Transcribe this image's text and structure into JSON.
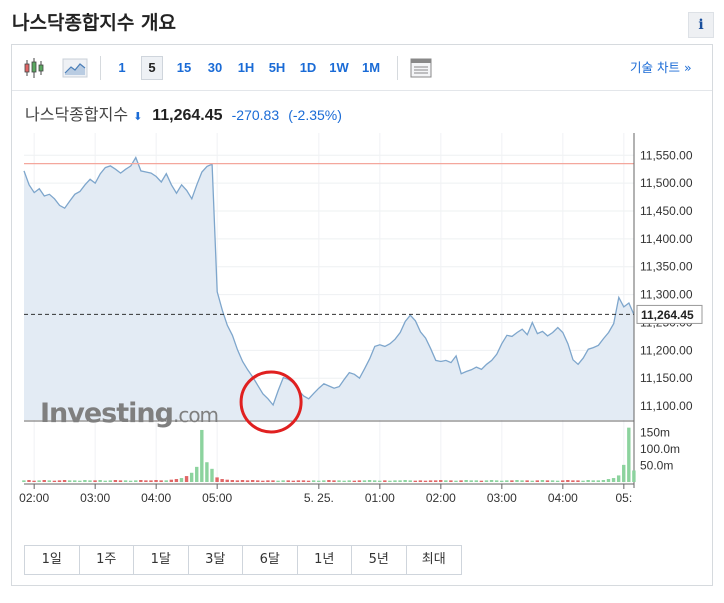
{
  "page": {
    "title": "나스닥종합지수 개요",
    "info_label": "i"
  },
  "toolbar": {
    "icons": [
      "candlestick-icon",
      "area-chart-icon",
      "table-icon"
    ],
    "intervals": [
      "1",
      "5",
      "15",
      "30",
      "1H",
      "5H",
      "1D",
      "1W",
      "1M"
    ],
    "active_interval": "5",
    "tech_chart_link": "기술 차트 »"
  },
  "quote": {
    "name": "나스닥종합지수",
    "direction_icon": "down-arrow-icon",
    "price": "11,264.45",
    "change": "-270.83",
    "change_pct": "(-2.35%)",
    "down_color": "#1a6bd6"
  },
  "watermark": {
    "brand": "Investing",
    "suffix": ".com"
  },
  "ranges": [
    "1일",
    "1주",
    "1달",
    "3달",
    "6달",
    "1년",
    "5년",
    "최대"
  ],
  "chart_data": {
    "type": "area",
    "title": "",
    "xlabel": "",
    "ylabel": "",
    "x_ticks": [
      "02:00",
      "03:00",
      "04:00",
      "05:00",
      "5. 25.",
      "01:00",
      "02:00",
      "03:00",
      "04:00",
      "05:"
    ],
    "x_tick_index": [
      2,
      14,
      26,
      38,
      58,
      70,
      82,
      94,
      106,
      118
    ],
    "ylim": [
      11075,
      11590
    ],
    "y_ticks": [
      11100,
      11150,
      11200,
      11250,
      11300,
      11350,
      11400,
      11450,
      11500,
      11550
    ],
    "y_tick_labels": [
      "11,100.00",
      "11,150.00",
      "11,200.00",
      "11,250.00",
      "11,300.00",
      "11,350.00",
      "11,400.00",
      "11,450.00",
      "11,500.00",
      "11,550.00"
    ],
    "current_value": 11264.45,
    "current_label": "11,264.45",
    "reference_line": 11535,
    "series": [
      {
        "values": [
          11522,
          11497,
          11483,
          11490,
          11477,
          11480,
          11472,
          11460,
          11455,
          11468,
          11480,
          11485,
          11497,
          11507,
          11500,
          11517,
          11528,
          11531,
          11525,
          11518,
          11525,
          11531,
          11546,
          11522,
          11520,
          11518,
          11512,
          11502,
          11517,
          11497,
          11482,
          11497,
          11487,
          11472,
          11497,
          11520,
          11530,
          11534,
          11305,
          11272,
          11245,
          11227,
          11201,
          11180,
          11165,
          11152,
          11137,
          11122,
          11113,
          11102,
          11128,
          11151,
          11148,
          11142,
          11128,
          11118,
          11113,
          11123,
          11132,
          11140,
          11136,
          11132,
          11135,
          11148,
          11160,
          11157,
          11150,
          11167,
          11185,
          11207,
          11210,
          11207,
          11212,
          11220,
          11232,
          11252,
          11263,
          11253,
          11233,
          11222,
          11203,
          11182,
          11180,
          11182,
          11178,
          11190,
          11158,
          11162,
          11165,
          11170,
          11166,
          11175,
          11182,
          11193,
          11212,
          11227,
          11225,
          11232,
          11238,
          11228,
          11250,
          11230,
          11234,
          11226,
          11232,
          11241,
          11232,
          11212,
          11183,
          11175,
          11186,
          11202,
          11205,
          11209,
          11221,
          11232,
          11248,
          11295,
          11278,
          11285,
          11264
        ],
        "color": "#7ea6cc"
      }
    ],
    "volume": {
      "y_ticks": [
        50,
        100,
        150
      ],
      "y_tick_labels": [
        "50.0m",
        "100.0m",
        "150m"
      ],
      "ylim": [
        0,
        170
      ],
      "values": [
        5,
        6,
        4,
        5,
        6,
        5,
        4,
        5,
        6,
        5,
        5,
        4,
        6,
        5,
        5,
        6,
        4,
        5,
        6,
        5,
        5,
        4,
        5,
        6,
        5,
        5,
        6,
        5,
        5,
        7,
        9,
        12,
        18,
        28,
        46,
        158,
        60,
        40,
        14,
        9,
        7,
        6,
        5,
        6,
        5,
        6,
        5,
        4,
        5,
        5,
        4,
        5,
        5,
        4,
        5,
        5,
        4,
        5,
        4,
        5,
        6,
        5,
        5,
        4,
        5,
        4,
        5,
        5,
        6,
        5,
        4,
        5,
        4,
        5,
        5,
        6,
        5,
        4,
        5,
        4,
        5,
        5,
        6,
        5,
        5,
        4,
        5,
        6,
        5,
        5,
        4,
        5,
        6,
        5,
        4,
        5,
        5,
        6,
        5,
        5,
        4,
        5,
        6,
        5,
        5,
        4,
        5,
        6,
        5,
        5,
        4,
        6,
        5,
        5,
        6,
        9,
        12,
        20,
        52,
        165,
        35
      ],
      "up_color": "#8cd39e",
      "down_color": "#e06666"
    },
    "annotation": {
      "type": "circle",
      "color": "#e02020",
      "index": 49
    }
  }
}
